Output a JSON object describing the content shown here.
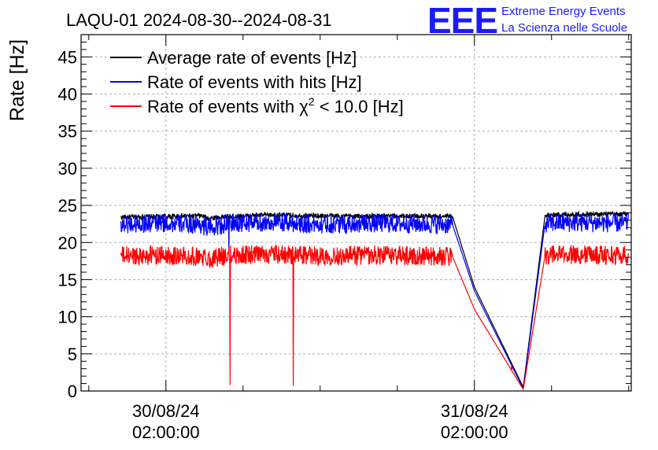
{
  "header": {
    "title": "LAQU-01 2024-08-30--2024-08-31",
    "logo_letters": "EEE",
    "logo_line1": "Extreme Energy Events",
    "logo_line2": "La Scienza nelle Scuole"
  },
  "chart_data": {
    "type": "line",
    "ylabel": "Rate [Hz]",
    "xlabel": "",
    "ylim": [
      0,
      48
    ],
    "yticks": [
      0,
      5,
      10,
      15,
      20,
      25,
      30,
      35,
      40,
      45
    ],
    "xlim_hours": [
      -6.6,
      36.2
    ],
    "xtick_major_hours": [
      0,
      24
    ],
    "xtick_labels": [
      {
        "date": "30/08/24",
        "time": "02:00:00",
        "hours": 0
      },
      {
        "date": "31/08/24",
        "time": "02:00:00",
        "hours": 24
      }
    ],
    "grid": true,
    "legend_position": "top-left",
    "series": [
      {
        "name": "Average rate of events [Hz]",
        "color": "#000000",
        "x_hours": [
          -3.5,
          0,
          2.8,
          3.2,
          5,
          8,
          12,
          16,
          20,
          22.3,
          24,
          27.8,
          29.5,
          32,
          36
        ],
        "values": [
          23.4,
          23.5,
          23.6,
          23.3,
          23.5,
          23.7,
          23.6,
          23.5,
          23.6,
          23.5,
          14,
          0.5,
          23.7,
          23.8,
          23.8
        ]
      },
      {
        "name": "Rate of events with hits [Hz]",
        "color": "#0000ff",
        "x_hours": [
          -3.5,
          0,
          2.8,
          3.2,
          5,
          8,
          12,
          16,
          20,
          22.3,
          24,
          27.8,
          29.5,
          32,
          36
        ],
        "values": [
          22.5,
          22.6,
          22.4,
          22.0,
          22.6,
          22.7,
          22.5,
          22.6,
          22.5,
          22.4,
          13.5,
          0.3,
          22.6,
          22.7,
          22.6
        ],
        "dips": [
          {
            "hours": 4.9,
            "value": 19.0
          }
        ]
      },
      {
        "name": "Rate of events with χ² < 10.0 [Hz]",
        "name_prefix": "Rate of events with ",
        "chi_symbol": "χ",
        "chi_exponent": "2",
        "name_suffix": " < 10.0 [Hz]",
        "color": "#ff0000",
        "x_hours": [
          -3.5,
          0,
          2.8,
          3.2,
          5,
          8,
          12,
          16,
          20,
          22.3,
          24,
          27.8,
          29.5,
          32,
          36
        ],
        "values": [
          18.2,
          18.3,
          18.1,
          17.8,
          18.3,
          18.4,
          18.2,
          18.3,
          18.2,
          18.1,
          11,
          0.2,
          18.3,
          18.4,
          18.3
        ],
        "dips": [
          {
            "hours": 5.0,
            "value": 0.8
          },
          {
            "hours": 9.9,
            "value": 0.7
          },
          {
            "hours": 26.9,
            "value": 3.5
          }
        ]
      }
    ]
  }
}
